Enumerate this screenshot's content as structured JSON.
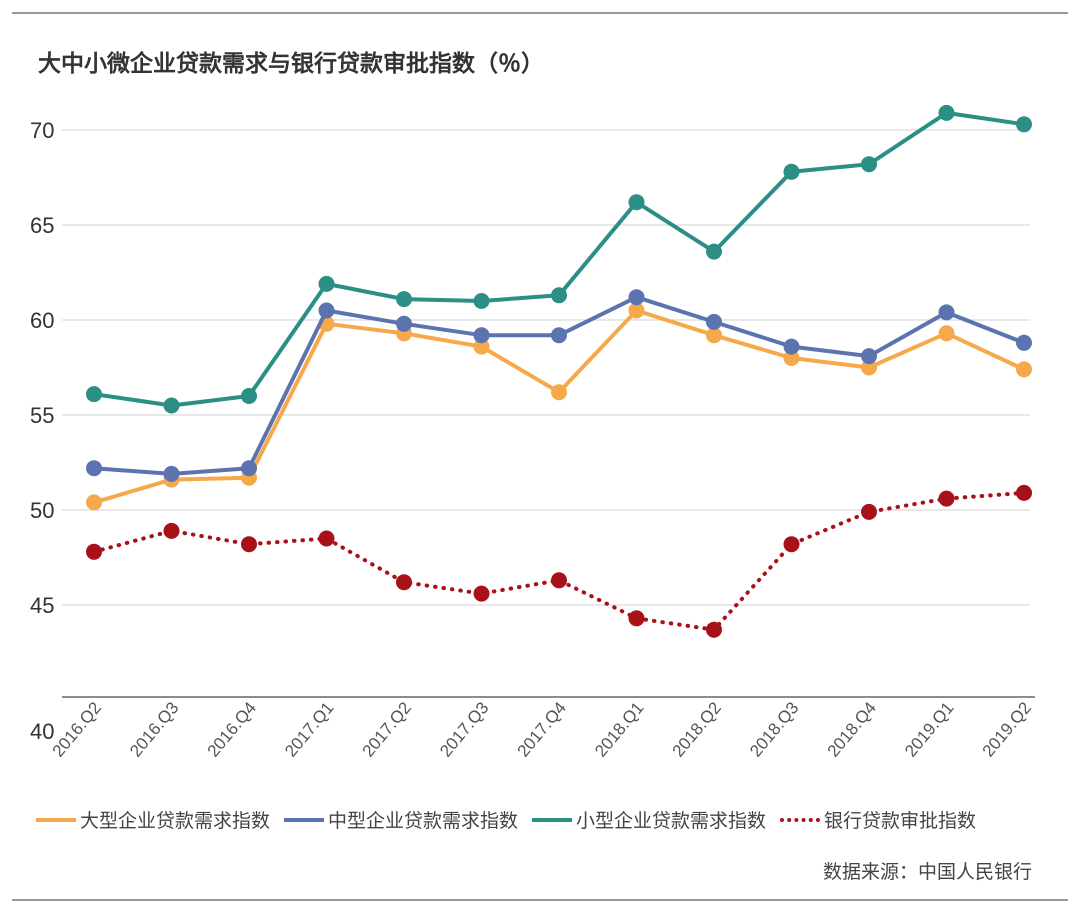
{
  "title": "大中小微企业贷款需求与银行贷款审批指数（％）",
  "source": "数据来源：中国人民银行",
  "chart_data": {
    "type": "line",
    "title": "大中小微企业贷款需求与银行贷款审批指数（％）",
    "xlabel": "",
    "ylabel": "",
    "categories": [
      "2016.Q2",
      "2016.Q3",
      "2016.Q4",
      "2017.Q1",
      "2017.Q2",
      "2017.Q3",
      "2017.Q4",
      "2018.Q1",
      "2018.Q2",
      "2018.Q3",
      "2018.Q4",
      "2019.Q1",
      "2019.Q2"
    ],
    "y_ticks": [
      70,
      65,
      60,
      55,
      50,
      45,
      40
    ],
    "ylim": [
      40,
      71.5
    ],
    "grid": "horizontal",
    "legend_position": "bottom",
    "series": [
      {
        "name": "大型企业贷款需求指数",
        "color": "#F5A94A",
        "style": "solid",
        "values": [
          50.4,
          51.6,
          51.7,
          59.8,
          59.3,
          58.6,
          56.2,
          60.5,
          59.2,
          58.0,
          57.5,
          59.3,
          57.4
        ]
      },
      {
        "name": "中型企业贷款需求指数",
        "color": "#5B73AE",
        "style": "solid",
        "values": [
          52.2,
          51.9,
          52.2,
          60.5,
          59.8,
          59.2,
          59.2,
          61.2,
          59.9,
          58.6,
          58.1,
          60.4,
          58.8
        ]
      },
      {
        "name": "小型企业贷款需求指数",
        "color": "#2B8F85",
        "style": "solid",
        "values": [
          56.1,
          55.5,
          56.0,
          61.9,
          61.1,
          61.0,
          61.3,
          66.2,
          63.6,
          67.8,
          68.2,
          70.9,
          70.3
        ]
      },
      {
        "name": "银行贷款审批指数",
        "color": "#A8101A",
        "style": "dotted",
        "values": [
          47.8,
          48.9,
          48.2,
          48.5,
          46.2,
          45.6,
          46.3,
          44.3,
          43.7,
          48.2,
          49.9,
          50.6,
          50.9
        ]
      }
    ]
  }
}
